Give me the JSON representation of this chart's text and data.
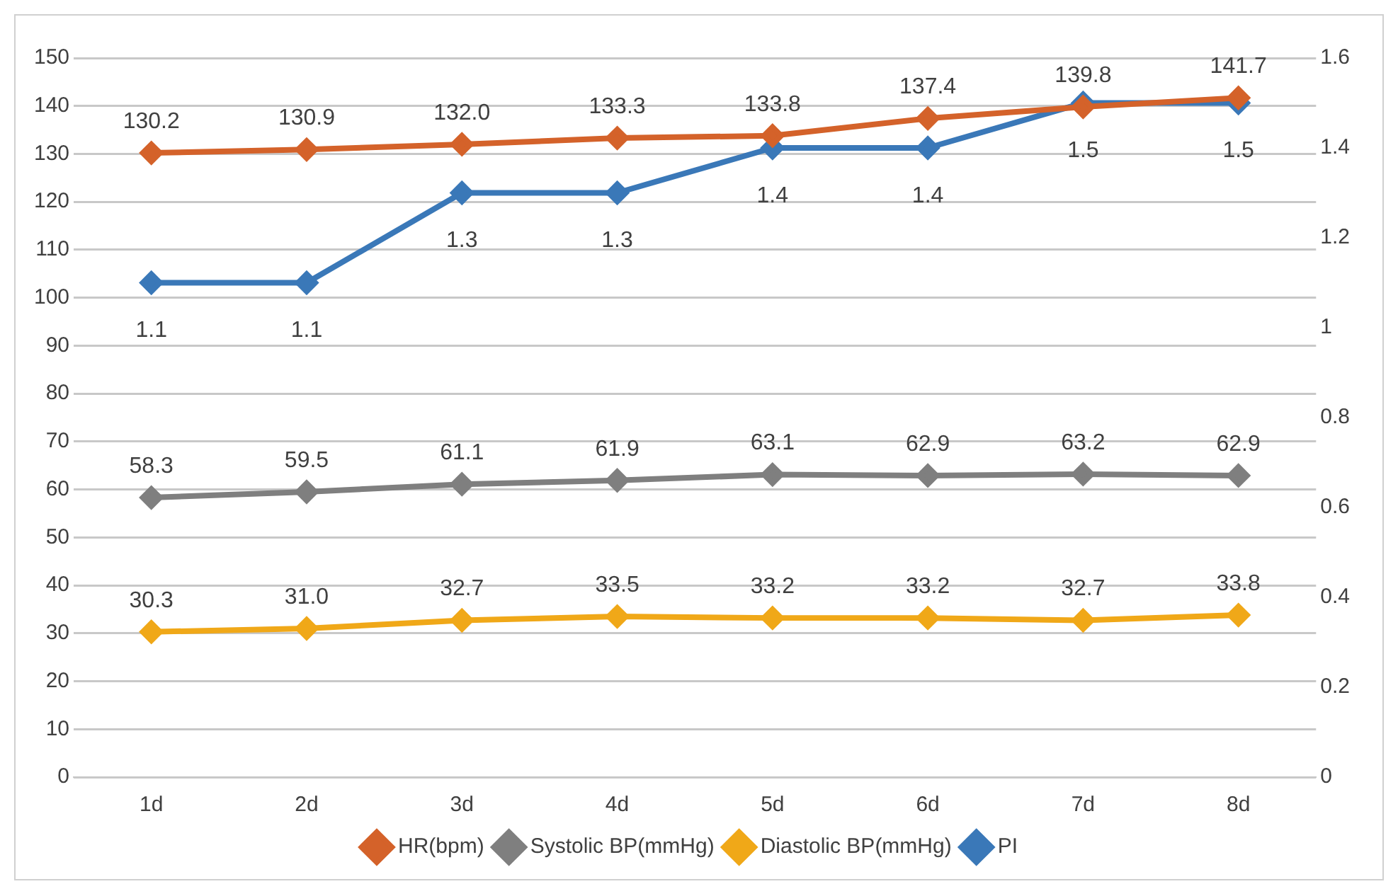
{
  "chart_data": {
    "type": "line",
    "categories": [
      "1d",
      "2d",
      "3d",
      "4d",
      "5d",
      "6d",
      "7d",
      "8d"
    ],
    "series": [
      {
        "name": "HR(bpm)",
        "color": "#d4622a",
        "values": [
          130.2,
          130.9,
          132.0,
          133.3,
          133.8,
          137.4,
          139.8,
          141.7
        ],
        "value_labels": [
          "130.2",
          "130.9",
          "132.0",
          "133.3",
          "133.8",
          "137.4",
          "139.8",
          "141.7"
        ]
      },
      {
        "name": "Systolic BP(mmHg)",
        "color": "#7f7f7f",
        "values": [
          58.3,
          59.5,
          61.1,
          61.9,
          63.1,
          62.9,
          63.2,
          62.9
        ],
        "value_labels": [
          "58.3",
          "59.5",
          "61.1",
          "61.9",
          "63.1",
          "62.9",
          "63.2",
          "62.9"
        ]
      },
      {
        "name": "Diastolic BP(mmHg)",
        "color": "#f0a818",
        "values": [
          30.3,
          31.0,
          32.7,
          33.5,
          33.2,
          33.2,
          32.7,
          33.8
        ],
        "value_labels": [
          "30.3",
          "31.0",
          "32.7",
          "33.5",
          "33.2",
          "33.2",
          "32.7",
          "33.8"
        ]
      },
      {
        "name": "PI",
        "color": "#3a78b8",
        "axis": "y2",
        "values": [
          1.1,
          1.1,
          1.3,
          1.3,
          1.4,
          1.4,
          1.5,
          1.5
        ],
        "value_labels": [
          "1.1",
          "1.1",
          "1.3",
          "1.3",
          "1.4",
          "1.4",
          "1.5",
          "1.5"
        ]
      }
    ],
    "ylim": [
      0,
      150
    ],
    "yticks": [
      0,
      10,
      20,
      30,
      40,
      50,
      60,
      70,
      80,
      90,
      100,
      110,
      120,
      130,
      140,
      150
    ],
    "y2lim": [
      0,
      1.6
    ],
    "y2ticks": [
      0,
      0.2,
      0.4,
      0.6,
      0.8,
      1,
      1.2,
      1.4,
      1.6
    ],
    "grid": "y",
    "legend": "bottom",
    "marker": "diamond",
    "line_style": "solid"
  }
}
